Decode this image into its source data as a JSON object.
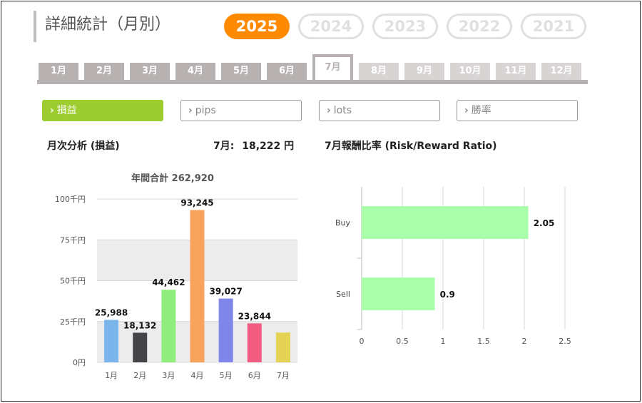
{
  "page_title": "詳細統計（月別）",
  "year_tabs": [
    "2025",
    "2024",
    "2023",
    "2022",
    "2021"
  ],
  "month_tabs": [
    "1月",
    "2月",
    "3月",
    "4月",
    "5月",
    "6月",
    "7月",
    "8月",
    "9月",
    "10月",
    "11月",
    "12月"
  ],
  "filters": [
    "損益",
    "pips",
    "lots",
    "勝率"
  ],
  "monthly_analysis": {
    "title": "月次分析 (損益)",
    "month_label": "7月:",
    "month_value": "18,222 円"
  },
  "rr_title": "7月報酬比率 (Risk/Reward Ratio)",
  "chart_data": [
    {
      "type": "bar",
      "title": "年間合計 262,920",
      "categories": [
        "1月",
        "2月",
        "3月",
        "4月",
        "5月",
        "6月",
        "7月"
      ],
      "values": [
        25988,
        18132,
        44462,
        93245,
        39027,
        23844,
        18222
      ],
      "data_labels": [
        "25,988",
        "18,132",
        "44,462",
        "93,245",
        "39,027",
        "23,844",
        ""
      ],
      "colors": [
        "#7cb5ec",
        "#434348",
        "#90ed7d",
        "#f7a35c",
        "#8085e9",
        "#f15c80",
        "#e4d354"
      ],
      "y_ticks": [
        "0円",
        "25千円",
        "50千円",
        "75千円",
        "100千円"
      ],
      "ylim": [
        0,
        100000
      ],
      "grid": true,
      "legend": "none"
    },
    {
      "type": "bar",
      "orientation": "horizontal",
      "categories": [
        "Buy",
        "Sell"
      ],
      "values": [
        2.05,
        0.9
      ],
      "data_labels": [
        "2.05",
        "0.9"
      ],
      "x_ticks": [
        "0",
        "0.5",
        "1",
        "1.5",
        "2",
        "2.5"
      ],
      "xlim": [
        0,
        2.5
      ],
      "color": "#aaffaa",
      "grid": true,
      "legend": "none"
    }
  ]
}
